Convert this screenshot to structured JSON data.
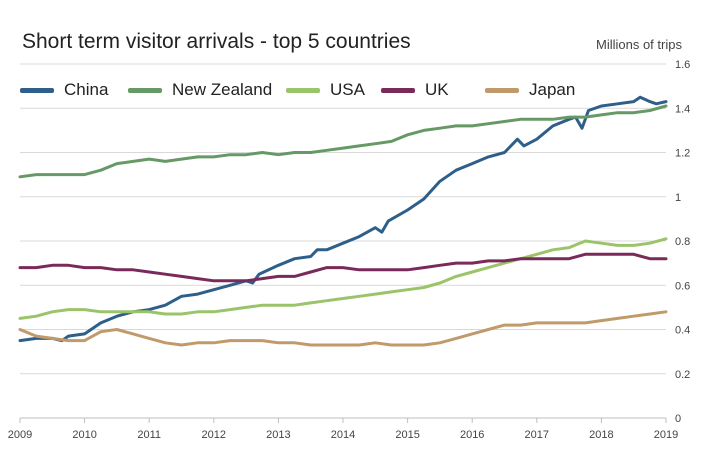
{
  "chart_data": {
    "type": "line",
    "title": "Short term visitor arrivals - top 5 countries",
    "unit_label": "Millions of trips",
    "xlabel": "",
    "ylabel": "",
    "xlim": [
      2009,
      2019
    ],
    "ylim": [
      0,
      1.6
    ],
    "x_ticks": [
      "2009",
      "2010",
      "2011",
      "2012",
      "2013",
      "2014",
      "2015",
      "2016",
      "2017",
      "2018",
      "2019"
    ],
    "y_ticks": [
      "0",
      "0.2",
      "0.4",
      "0.6",
      "0.8",
      "1",
      "1.2",
      "1.4",
      "1.6"
    ],
    "grid": "horizontal",
    "legend_position": "top",
    "series": [
      {
        "name": "China",
        "color": "#2e5f8a",
        "points": [
          [
            2009,
            0.35
          ],
          [
            2009.25,
            0.36
          ],
          [
            2009.5,
            0.36
          ],
          [
            2009.65,
            0.35
          ],
          [
            2009.75,
            0.37
          ],
          [
            2010,
            0.38
          ],
          [
            2010.25,
            0.43
          ],
          [
            2010.5,
            0.46
          ],
          [
            2010.75,
            0.48
          ],
          [
            2011,
            0.49
          ],
          [
            2011.25,
            0.51
          ],
          [
            2011.5,
            0.55
          ],
          [
            2011.75,
            0.56
          ],
          [
            2012,
            0.58
          ],
          [
            2012.25,
            0.6
          ],
          [
            2012.5,
            0.62
          ],
          [
            2012.6,
            0.61
          ],
          [
            2012.7,
            0.65
          ],
          [
            2013,
            0.69
          ],
          [
            2013.25,
            0.72
          ],
          [
            2013.5,
            0.73
          ],
          [
            2013.6,
            0.76
          ],
          [
            2013.75,
            0.76
          ],
          [
            2014,
            0.79
          ],
          [
            2014.25,
            0.82
          ],
          [
            2014.5,
            0.86
          ],
          [
            2014.6,
            0.84
          ],
          [
            2014.7,
            0.89
          ],
          [
            2015,
            0.94
          ],
          [
            2015.25,
            0.99
          ],
          [
            2015.5,
            1.07
          ],
          [
            2015.75,
            1.12
          ],
          [
            2016,
            1.15
          ],
          [
            2016.25,
            1.18
          ],
          [
            2016.5,
            1.2
          ],
          [
            2016.7,
            1.26
          ],
          [
            2016.8,
            1.23
          ],
          [
            2017,
            1.26
          ],
          [
            2017.25,
            1.32
          ],
          [
            2017.5,
            1.35
          ],
          [
            2017.6,
            1.36
          ],
          [
            2017.7,
            1.31
          ],
          [
            2017.8,
            1.39
          ],
          [
            2018,
            1.41
          ],
          [
            2018.25,
            1.42
          ],
          [
            2018.5,
            1.43
          ],
          [
            2018.6,
            1.45
          ],
          [
            2018.75,
            1.43
          ],
          [
            2018.85,
            1.42
          ],
          [
            2019,
            1.43
          ]
        ]
      },
      {
        "name": "New Zealand",
        "color": "#669966",
        "points": [
          [
            2009,
            1.09
          ],
          [
            2009.25,
            1.1
          ],
          [
            2009.5,
            1.1
          ],
          [
            2009.75,
            1.1
          ],
          [
            2010,
            1.1
          ],
          [
            2010.25,
            1.12
          ],
          [
            2010.5,
            1.15
          ],
          [
            2010.75,
            1.16
          ],
          [
            2011,
            1.17
          ],
          [
            2011.25,
            1.16
          ],
          [
            2011.5,
            1.17
          ],
          [
            2011.75,
            1.18
          ],
          [
            2012,
            1.18
          ],
          [
            2012.25,
            1.19
          ],
          [
            2012.5,
            1.19
          ],
          [
            2012.75,
            1.2
          ],
          [
            2013,
            1.19
          ],
          [
            2013.25,
            1.2
          ],
          [
            2013.5,
            1.2
          ],
          [
            2013.75,
            1.21
          ],
          [
            2014,
            1.22
          ],
          [
            2014.25,
            1.23
          ],
          [
            2014.5,
            1.24
          ],
          [
            2014.75,
            1.25
          ],
          [
            2015,
            1.28
          ],
          [
            2015.25,
            1.3
          ],
          [
            2015.5,
            1.31
          ],
          [
            2015.75,
            1.32
          ],
          [
            2016,
            1.32
          ],
          [
            2016.25,
            1.33
          ],
          [
            2016.5,
            1.34
          ],
          [
            2016.75,
            1.35
          ],
          [
            2017,
            1.35
          ],
          [
            2017.25,
            1.35
          ],
          [
            2017.5,
            1.36
          ],
          [
            2017.75,
            1.36
          ],
          [
            2018,
            1.37
          ],
          [
            2018.25,
            1.38
          ],
          [
            2018.5,
            1.38
          ],
          [
            2018.75,
            1.39
          ],
          [
            2019,
            1.41
          ]
        ]
      },
      {
        "name": "USA",
        "color": "#9bc46a",
        "points": [
          [
            2009,
            0.45
          ],
          [
            2009.25,
            0.46
          ],
          [
            2009.5,
            0.48
          ],
          [
            2009.75,
            0.49
          ],
          [
            2010,
            0.49
          ],
          [
            2010.25,
            0.48
          ],
          [
            2010.5,
            0.48
          ],
          [
            2010.75,
            0.48
          ],
          [
            2011,
            0.48
          ],
          [
            2011.25,
            0.47
          ],
          [
            2011.5,
            0.47
          ],
          [
            2011.75,
            0.48
          ],
          [
            2012,
            0.48
          ],
          [
            2012.25,
            0.49
          ],
          [
            2012.5,
            0.5
          ],
          [
            2012.75,
            0.51
          ],
          [
            2013,
            0.51
          ],
          [
            2013.25,
            0.51
          ],
          [
            2013.5,
            0.52
          ],
          [
            2013.75,
            0.53
          ],
          [
            2014,
            0.54
          ],
          [
            2014.25,
            0.55
          ],
          [
            2014.5,
            0.56
          ],
          [
            2014.75,
            0.57
          ],
          [
            2015,
            0.58
          ],
          [
            2015.25,
            0.59
          ],
          [
            2015.5,
            0.61
          ],
          [
            2015.75,
            0.64
          ],
          [
            2016,
            0.66
          ],
          [
            2016.25,
            0.68
          ],
          [
            2016.5,
            0.7
          ],
          [
            2016.75,
            0.72
          ],
          [
            2017,
            0.74
          ],
          [
            2017.25,
            0.76
          ],
          [
            2017.5,
            0.77
          ],
          [
            2017.75,
            0.8
          ],
          [
            2018,
            0.79
          ],
          [
            2018.25,
            0.78
          ],
          [
            2018.5,
            0.78
          ],
          [
            2018.75,
            0.79
          ],
          [
            2019,
            0.81
          ]
        ]
      },
      {
        "name": "UK",
        "color": "#7a2a5a",
        "points": [
          [
            2009,
            0.68
          ],
          [
            2009.25,
            0.68
          ],
          [
            2009.5,
            0.69
          ],
          [
            2009.75,
            0.69
          ],
          [
            2010,
            0.68
          ],
          [
            2010.25,
            0.68
          ],
          [
            2010.5,
            0.67
          ],
          [
            2010.75,
            0.67
          ],
          [
            2011,
            0.66
          ],
          [
            2011.25,
            0.65
          ],
          [
            2011.5,
            0.64
          ],
          [
            2011.75,
            0.63
          ],
          [
            2012,
            0.62
          ],
          [
            2012.25,
            0.62
          ],
          [
            2012.5,
            0.62
          ],
          [
            2012.75,
            0.63
          ],
          [
            2013,
            0.64
          ],
          [
            2013.25,
            0.64
          ],
          [
            2013.5,
            0.66
          ],
          [
            2013.75,
            0.68
          ],
          [
            2014,
            0.68
          ],
          [
            2014.25,
            0.67
          ],
          [
            2014.5,
            0.67
          ],
          [
            2014.75,
            0.67
          ],
          [
            2015,
            0.67
          ],
          [
            2015.25,
            0.68
          ],
          [
            2015.5,
            0.69
          ],
          [
            2015.75,
            0.7
          ],
          [
            2016,
            0.7
          ],
          [
            2016.25,
            0.71
          ],
          [
            2016.5,
            0.71
          ],
          [
            2016.75,
            0.72
          ],
          [
            2017,
            0.72
          ],
          [
            2017.25,
            0.72
          ],
          [
            2017.5,
            0.72
          ],
          [
            2017.75,
            0.74
          ],
          [
            2018,
            0.74
          ],
          [
            2018.25,
            0.74
          ],
          [
            2018.5,
            0.74
          ],
          [
            2018.75,
            0.72
          ],
          [
            2019,
            0.72
          ]
        ]
      },
      {
        "name": "Japan",
        "color": "#c19a6b",
        "points": [
          [
            2009,
            0.4
          ],
          [
            2009.25,
            0.37
          ],
          [
            2009.5,
            0.36
          ],
          [
            2009.75,
            0.35
          ],
          [
            2010,
            0.35
          ],
          [
            2010.25,
            0.39
          ],
          [
            2010.5,
            0.4
          ],
          [
            2010.75,
            0.38
          ],
          [
            2011,
            0.36
          ],
          [
            2011.25,
            0.34
          ],
          [
            2011.5,
            0.33
          ],
          [
            2011.75,
            0.34
          ],
          [
            2012,
            0.34
          ],
          [
            2012.25,
            0.35
          ],
          [
            2012.5,
            0.35
          ],
          [
            2012.75,
            0.35
          ],
          [
            2013,
            0.34
          ],
          [
            2013.25,
            0.34
          ],
          [
            2013.5,
            0.33
          ],
          [
            2013.75,
            0.33
          ],
          [
            2014,
            0.33
          ],
          [
            2014.25,
            0.33
          ],
          [
            2014.5,
            0.34
          ],
          [
            2014.75,
            0.33
          ],
          [
            2015,
            0.33
          ],
          [
            2015.25,
            0.33
          ],
          [
            2015.5,
            0.34
          ],
          [
            2015.75,
            0.36
          ],
          [
            2016,
            0.38
          ],
          [
            2016.25,
            0.4
          ],
          [
            2016.5,
            0.42
          ],
          [
            2016.75,
            0.42
          ],
          [
            2017,
            0.43
          ],
          [
            2017.25,
            0.43
          ],
          [
            2017.5,
            0.43
          ],
          [
            2017.75,
            0.43
          ],
          [
            2018,
            0.44
          ],
          [
            2018.25,
            0.45
          ],
          [
            2018.5,
            0.46
          ],
          [
            2018.75,
            0.47
          ],
          [
            2019,
            0.48
          ]
        ]
      }
    ]
  }
}
